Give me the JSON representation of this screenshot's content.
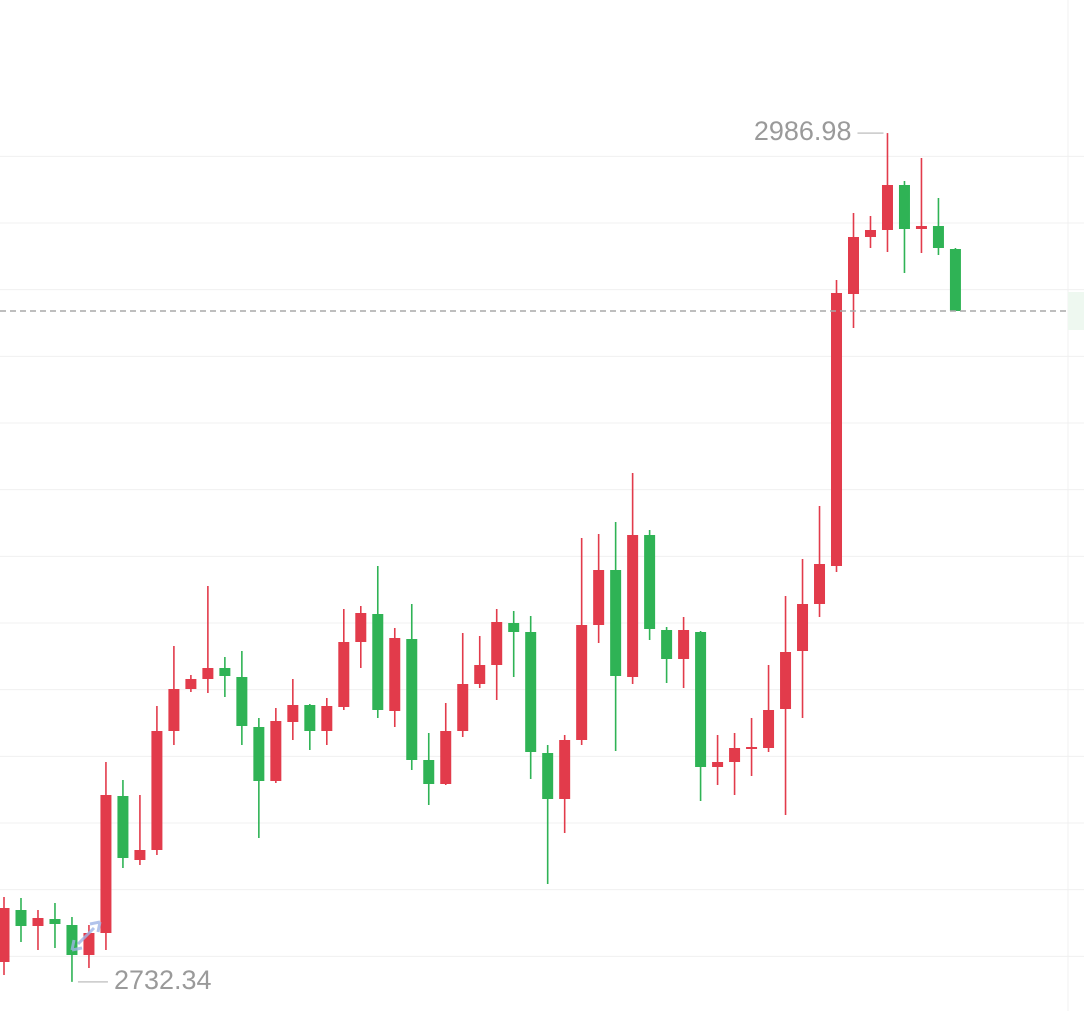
{
  "chart_data": {
    "type": "candlestick",
    "up_color": "#e23b4b",
    "down_color": "#2fb355",
    "grid": true,
    "last_price_line": true,
    "ylim": [
      2723.6,
      3026.9
    ],
    "yticks": [
      2740,
      2760,
      2780,
      2800,
      2820,
      2840,
      2860,
      2880,
      2900,
      2920,
      2940,
      2960,
      2980
    ],
    "open": [
      2738.3,
      2753.9,
      2749.1,
      2751.2,
      2749.4,
      2740.4,
      2747.0,
      2788.1,
      2768.9,
      2771.9,
      2807.6,
      2820.2,
      2823.2,
      2826.5,
      2823.8,
      2808.8,
      2792.6,
      2810.3,
      2815.4,
      2807.6,
      2814.8,
      2834.3,
      2842.7,
      2813.6,
      2835.2,
      2798.9,
      2791.7,
      2807.6,
      2821.7,
      2827.4,
      2840.0,
      2837.3,
      2801.0,
      2787.2,
      2804.9,
      2839.4,
      2855.9,
      2823.8,
      2866.4,
      2837.9,
      2829.2,
      2837.3,
      2796.8,
      2798.3,
      2802.2,
      2802.5,
      2814.2,
      2831.6,
      2845.7,
      2857.1,
      2938.7,
      2955.8,
      2957.9,
      2971.4,
      2958.2,
      2959.1,
      2952.2
    ],
    "high": [
      2757.8,
      2757.5,
      2753.9,
      2756.0,
      2751.8,
      2749.4,
      2798.3,
      2792.9,
      2788.4,
      2815.1,
      2833.1,
      2824.4,
      2851.1,
      2829.8,
      2831.6,
      2811.5,
      2814.5,
      2823.2,
      2815.7,
      2817.5,
      2844.2,
      2845.1,
      2857.1,
      2838.5,
      2845.7,
      2807.0,
      2816.0,
      2837.0,
      2836.1,
      2844.2,
      2843.6,
      2842.1,
      2803.4,
      2806.4,
      2865.5,
      2866.7,
      2870.3,
      2885.0,
      2867.9,
      2838.8,
      2841.8,
      2837.6,
      2806.4,
      2807.0,
      2811.5,
      2827.4,
      2848.1,
      2859.2,
      2875.1,
      2942.9,
      2963.0,
      2962.1,
      2986.98,
      2972.6,
      2979.5,
      2967.5,
      2952.5
    ],
    "low": [
      2734.4,
      2744.3,
      2741.9,
      2742.5,
      2732.34,
      2736.5,
      2741.9,
      2766.5,
      2767.4,
      2770.4,
      2803.4,
      2819.3,
      2819.0,
      2817.8,
      2803.4,
      2775.5,
      2792.0,
      2804.9,
      2801.9,
      2803.4,
      2813.9,
      2826.5,
      2811.5,
      2808.8,
      2795.9,
      2785.4,
      2791.4,
      2805.8,
      2820.5,
      2816.9,
      2823.8,
      2793.2,
      2761.7,
      2777.0,
      2803.4,
      2834.0,
      2801.6,
      2821.7,
      2834.9,
      2822.0,
      2820.5,
      2786.6,
      2791.4,
      2788.4,
      2794.1,
      2801.3,
      2782.4,
      2811.5,
      2841.8,
      2855.3,
      2928.5,
      2952.5,
      2951.3,
      2945.0,
      2951.0,
      2950.4,
      2933.6
    ],
    "close": [
      2754.5,
      2749.1,
      2751.5,
      2749.7,
      2740.4,
      2747.0,
      2788.4,
      2769.5,
      2771.9,
      2807.6,
      2820.2,
      2823.2,
      2826.5,
      2824.1,
      2809.1,
      2792.6,
      2810.6,
      2815.4,
      2807.6,
      2815.1,
      2834.3,
      2843.0,
      2813.9,
      2835.5,
      2798.9,
      2791.7,
      2807.6,
      2821.7,
      2827.4,
      2840.3,
      2837.3,
      2801.3,
      2787.2,
      2804.9,
      2839.4,
      2855.9,
      2824.1,
      2866.4,
      2838.2,
      2829.2,
      2837.9,
      2796.8,
      2798.3,
      2802.5,
      2802.8,
      2813.9,
      2831.3,
      2845.7,
      2857.7,
      2939.0,
      2955.8,
      2957.9,
      2971.4,
      2958.2,
      2959.1,
      2952.5,
      2933.6
    ]
  }
}
